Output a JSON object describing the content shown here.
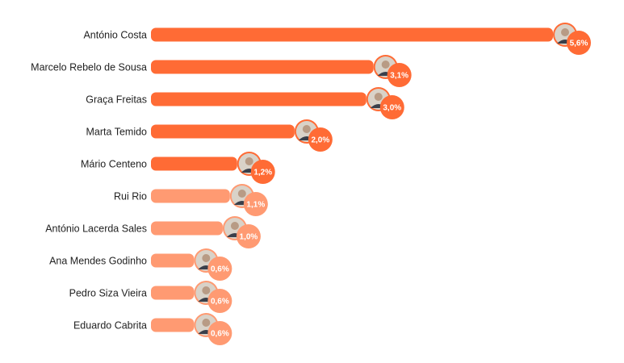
{
  "chart_data": {
    "type": "bar",
    "orientation": "horizontal",
    "categories": [
      "António Costa",
      "Marcelo Rebelo de Sousa",
      "Graça Freitas",
      "Marta Temido",
      "Mário Centeno",
      "Rui Rio",
      "António Lacerda Sales",
      "Ana Mendes Godinho",
      "Pedro Siza Vieira",
      "Eduardo Cabrita"
    ],
    "values": [
      5.6,
      3.1,
      3.0,
      2.0,
      1.2,
      1.1,
      1.0,
      0.6,
      0.6,
      0.6
    ],
    "value_labels": [
      "5,6%",
      "3,1%",
      "3,0%",
      "2,0%",
      "1,2%",
      "1,1%",
      "1,0%",
      "0,6%",
      "0,6%",
      "0,6%"
    ],
    "highlighted": [
      true,
      true,
      true,
      true,
      true,
      false,
      false,
      false,
      false,
      false
    ],
    "title": "",
    "xlabel": "",
    "ylabel": "",
    "grid": false,
    "legend": "none"
  },
  "colors": {
    "primary": "#ff6b35",
    "secondary": "#ff9a72",
    "label_text": "#222222",
    "value_text": "#ffffff"
  },
  "icons": [
    "person-photo-icon"
  ]
}
